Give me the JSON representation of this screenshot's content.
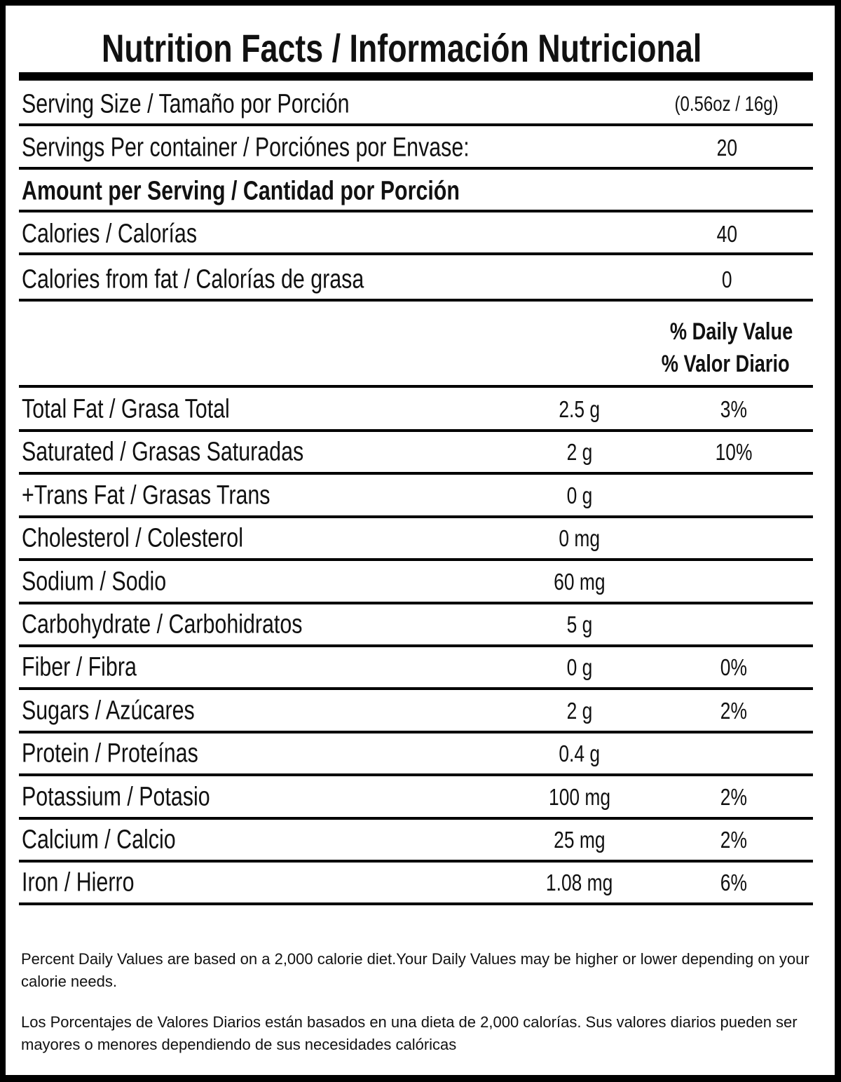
{
  "title": "Nutrition Facts / Información Nutricional",
  "serving_size": {
    "label": "Serving Size / Tamaño por Porción",
    "value": "(0.56oz / 16g)"
  },
  "servings_per_container": {
    "label": "Servings Per container / Porciónes por Envase:",
    "value": "20"
  },
  "amount_per_serving": "Amount per Serving / Cantidad por Porción",
  "calories": {
    "label": "Calories / Calorías",
    "value": "40"
  },
  "calories_from_fat": {
    "label": "Calories from fat / Calorías de grasa",
    "value": "0"
  },
  "daily_value_header": {
    "line1": "% Daily Value",
    "line2": "% Valor Diario"
  },
  "nutrients": [
    {
      "label": "Total Fat / Grasa Total",
      "amount": "2.5 g",
      "dv": "3%"
    },
    {
      "label": "Saturated / Grasas Saturadas",
      "amount": "2 g",
      "dv": "10%"
    },
    {
      "label": "+Trans Fat / Grasas Trans",
      "amount": "0 g",
      "dv": ""
    },
    {
      "label": "Cholesterol / Colesterol",
      "amount": "0 mg",
      "dv": ""
    },
    {
      "label": "Sodium / Sodio",
      "amount": "60 mg",
      "dv": ""
    },
    {
      "label": "Carbohydrate / Carbohidratos",
      "amount": "5 g",
      "dv": ""
    },
    {
      "label": "Fiber / Fibra",
      "amount": "0 g",
      "dv": "0%"
    },
    {
      "label": "Sugars / Azúcares",
      "amount": "2 g",
      "dv": "2%"
    },
    {
      "label": "Protein / Proteínas",
      "amount": "0.4 g",
      "dv": ""
    },
    {
      "label": "Potassium / Potasio",
      "amount": "100 mg",
      "dv": "2%"
    },
    {
      "label": "Calcium / Calcio",
      "amount": "25 mg",
      "dv": "2%"
    },
    {
      "label": "Iron / Hierro",
      "amount": "1.08 mg",
      "dv": "6%"
    }
  ],
  "footnotes": {
    "english": "Percent Daily Values are based on a 2,000 calorie diet.Your Daily Values may be higher or lower depending on your calorie needs.",
    "spanish": "Los Porcentajes de Valores Diarios están basados en una dieta de 2,000 calorías. Sus valores diarios pueden ser mayores o menores dependiendo de sus necesidades calóricas"
  }
}
